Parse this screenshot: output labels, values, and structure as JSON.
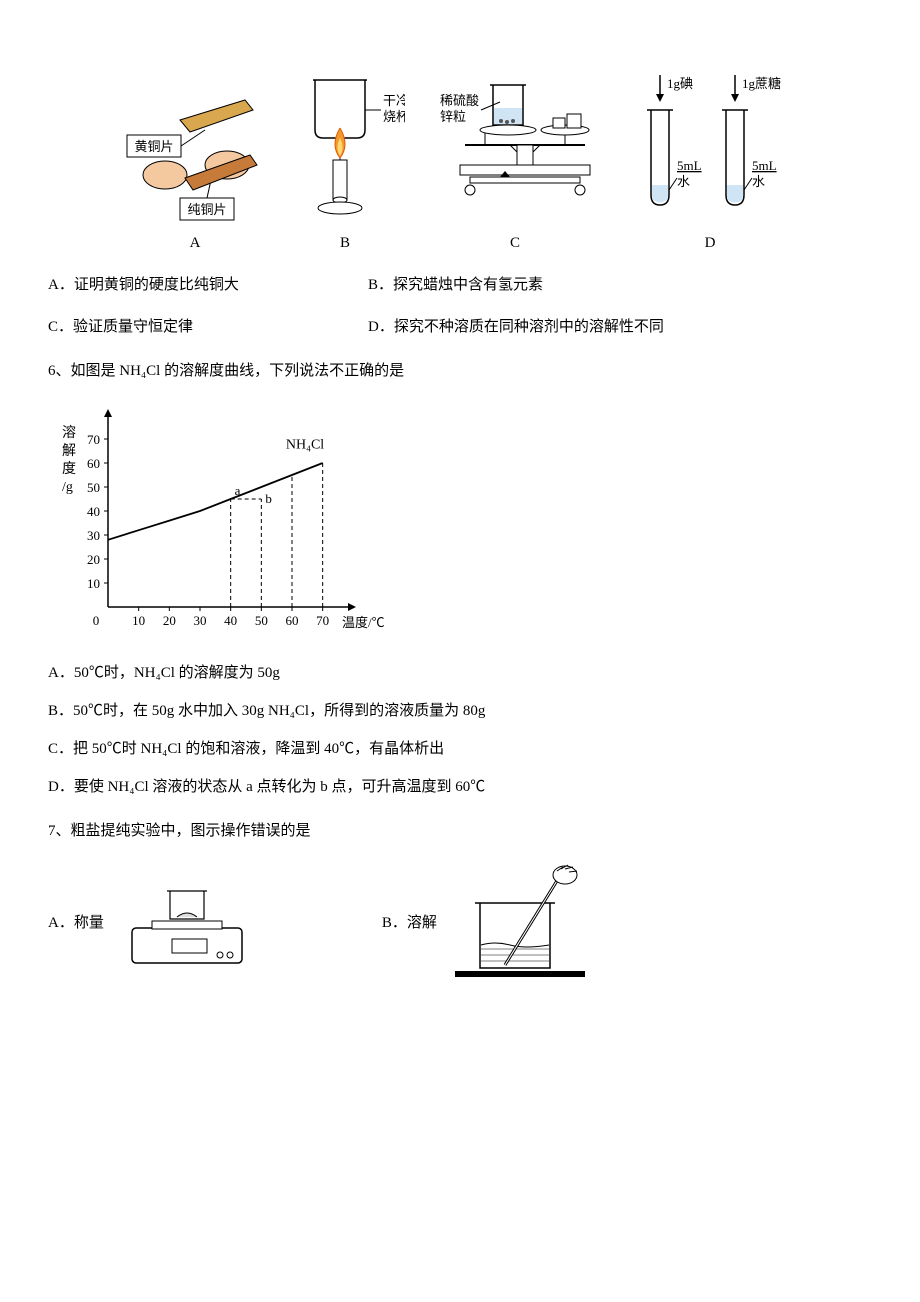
{
  "fig5": {
    "panelA": {
      "label": "A",
      "brass": "黄铜片",
      "copper": "纯铜片"
    },
    "panelB": {
      "label": "B",
      "beaker_lbl1": "干冷",
      "beaker_lbl2": "烧杯"
    },
    "panelC": {
      "label": "C",
      "acid1": "稀硫酸",
      "acid2": "锌粒"
    },
    "panelD": {
      "label": "D",
      "iodine": "1g碘",
      "sugar": "1g蔗糖",
      "vol": "5mL",
      "water": "水"
    },
    "optA": "A．证明黄铜的硬度比纯铜大",
    "optB": "B．探究蜡烛中含有氢元素",
    "optC": "C．验证质量守恒定律",
    "optD": "D．探究不种溶质在同种溶剂中的溶解性不同"
  },
  "q6": {
    "stem": "6、如图是 NH₄Cl 的溶解度曲线，下列说法不正确的是",
    "y_label1": "溶",
    "y_label2": "解",
    "y_label3": "度",
    "y_label4": "/g",
    "x_label": "温度/℃",
    "curve_label": "NH₄Cl",
    "pt_a": "a",
    "pt_b": "b",
    "y_ticks": [
      10,
      20,
      30,
      40,
      50,
      60,
      70
    ],
    "x_ticks": [
      10,
      20,
      30,
      40,
      50,
      60,
      70
    ],
    "curve_points": [
      [
        0,
        28
      ],
      [
        10,
        32
      ],
      [
        20,
        36
      ],
      [
        30,
        40
      ],
      [
        40,
        45
      ],
      [
        50,
        50
      ],
      [
        60,
        55
      ],
      [
        70,
        60
      ]
    ],
    "optA": "A．50℃时，NH₄Cl 的溶解度为 50g",
    "optB": "B．50℃时，在 50g 水中加入 30g NH₄Cl，所得到的溶液质量为 80g",
    "optC": "C．把 50℃时 NH₄Cl 的饱和溶液，降温到 40℃，有晶体析出",
    "optD": "D．要使 NH₄Cl 溶液的状态从 a 点转化为 b 点，可升高温度到 60℃"
  },
  "q7": {
    "stem": "7、粗盐提纯实验中，图示操作错误的是",
    "optA": "A．称量",
    "optB": "B．溶解"
  },
  "colors": {
    "stroke": "#000000",
    "fill_light": "#ffffff",
    "brass": "#d9a84e",
    "hand": "#f5c9a0",
    "candle_flame": "#f29a2e",
    "water": "#a7c7e7"
  }
}
